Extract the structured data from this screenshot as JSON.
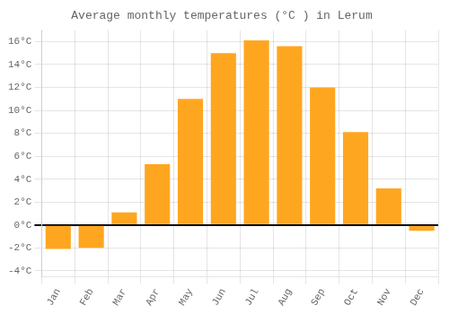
{
  "chart_data": {
    "type": "bar",
    "title": "Average monthly temperatures (°C ) in Lerum",
    "categories": [
      "Jan",
      "Feb",
      "Mar",
      "Apr",
      "May",
      "Jun",
      "Jul",
      "Aug",
      "Sep",
      "Oct",
      "Nov",
      "Dec"
    ],
    "values": [
      -2.1,
      -2.0,
      1.1,
      5.3,
      11.0,
      15.0,
      16.1,
      15.6,
      12.0,
      8.1,
      3.2,
      -0.5
    ],
    "color": "#FFA620",
    "ylim": [
      -4.5,
      17.0
    ],
    "yticks": [
      {
        "value": -4,
        "label": "-4°C"
      },
      {
        "value": -2,
        "label": "-2°C"
      },
      {
        "value": 0,
        "label": "0°C"
      },
      {
        "value": 2,
        "label": "2°C"
      },
      {
        "value": 4,
        "label": "4°C"
      },
      {
        "value": 6,
        "label": "6°C"
      },
      {
        "value": 8,
        "label": "8°C"
      },
      {
        "value": 10,
        "label": "10°C"
      },
      {
        "value": 12,
        "label": "12°C"
      },
      {
        "value": 14,
        "label": "14°C"
      },
      {
        "value": 16,
        "label": "16°C"
      }
    ],
    "grid": true
  }
}
